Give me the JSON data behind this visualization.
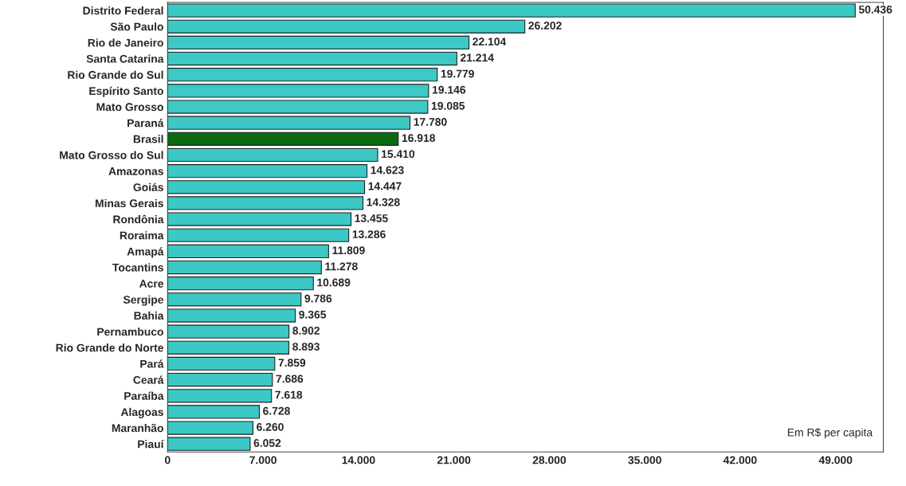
{
  "chart_data": {
    "type": "bar",
    "orientation": "horizontal",
    "categories": [
      "Distrito Federal",
      "São Paulo",
      "Rio de Janeiro",
      "Santa Catarina",
      "Rio Grande do Sul",
      "Espírito Santo",
      "Mato Grosso",
      "Paraná",
      "Brasil",
      "Mato Grosso do Sul",
      "Amazonas",
      "Goiás",
      "Minas Gerais",
      "Rondônia",
      "Roraima",
      "Amapá",
      "Tocantins",
      "Acre",
      "Sergipe",
      "Bahia",
      "Pernambuco",
      "Rio Grande do Norte",
      "Pará",
      "Ceará",
      "Paraíba",
      "Alagoas",
      "Maranhão",
      "Piauí"
    ],
    "values": [
      50436,
      26202,
      22104,
      21214,
      19779,
      19146,
      19085,
      17780,
      16918,
      15410,
      14623,
      14447,
      14328,
      13455,
      13286,
      11809,
      11278,
      10689,
      9786,
      9365,
      8902,
      8893,
      7859,
      7686,
      7618,
      6728,
      6260,
      6052
    ],
    "value_labels": [
      "50.436",
      "26.202",
      "22.104",
      "21.214",
      "19.779",
      "19.146",
      "19.085",
      "17.780",
      "16.918",
      "15.410",
      "14.623",
      "14.447",
      "14.328",
      "13.455",
      "13.286",
      "11.809",
      "11.278",
      "10.689",
      "9.786",
      "9.365",
      "8.902",
      "8.893",
      "7.859",
      "7.686",
      "7.618",
      "6.728",
      "6.260",
      "6.052"
    ],
    "colors": [
      "#3cc8c4",
      "#3cc8c4",
      "#3cc8c4",
      "#3cc8c4",
      "#3cc8c4",
      "#3cc8c4",
      "#3cc8c4",
      "#3cc8c4",
      "#0b6b10",
      "#3cc8c4",
      "#3cc8c4",
      "#3cc8c4",
      "#3cc8c4",
      "#3cc8c4",
      "#3cc8c4",
      "#3cc8c4",
      "#3cc8c4",
      "#3cc8c4",
      "#3cc8c4",
      "#3cc8c4",
      "#3cc8c4",
      "#3cc8c4",
      "#3cc8c4",
      "#3cc8c4",
      "#3cc8c4",
      "#3cc8c4",
      "#3cc8c4",
      "#3cc8c4"
    ],
    "xlim": [
      0,
      52500
    ],
    "xticks": [
      {
        "value": 0,
        "label": "0"
      },
      {
        "value": 7000,
        "label": "7.000"
      },
      {
        "value": 14000,
        "label": "14.000"
      },
      {
        "value": 21000,
        "label": "21.000"
      },
      {
        "value": 28000,
        "label": "28.000"
      },
      {
        "value": 35000,
        "label": "35.000"
      },
      {
        "value": 42000,
        "label": "42.000"
      },
      {
        "value": 49000,
        "label": "49.000"
      }
    ],
    "grid": false,
    "annotations": [
      "Em R$ per capita"
    ]
  }
}
